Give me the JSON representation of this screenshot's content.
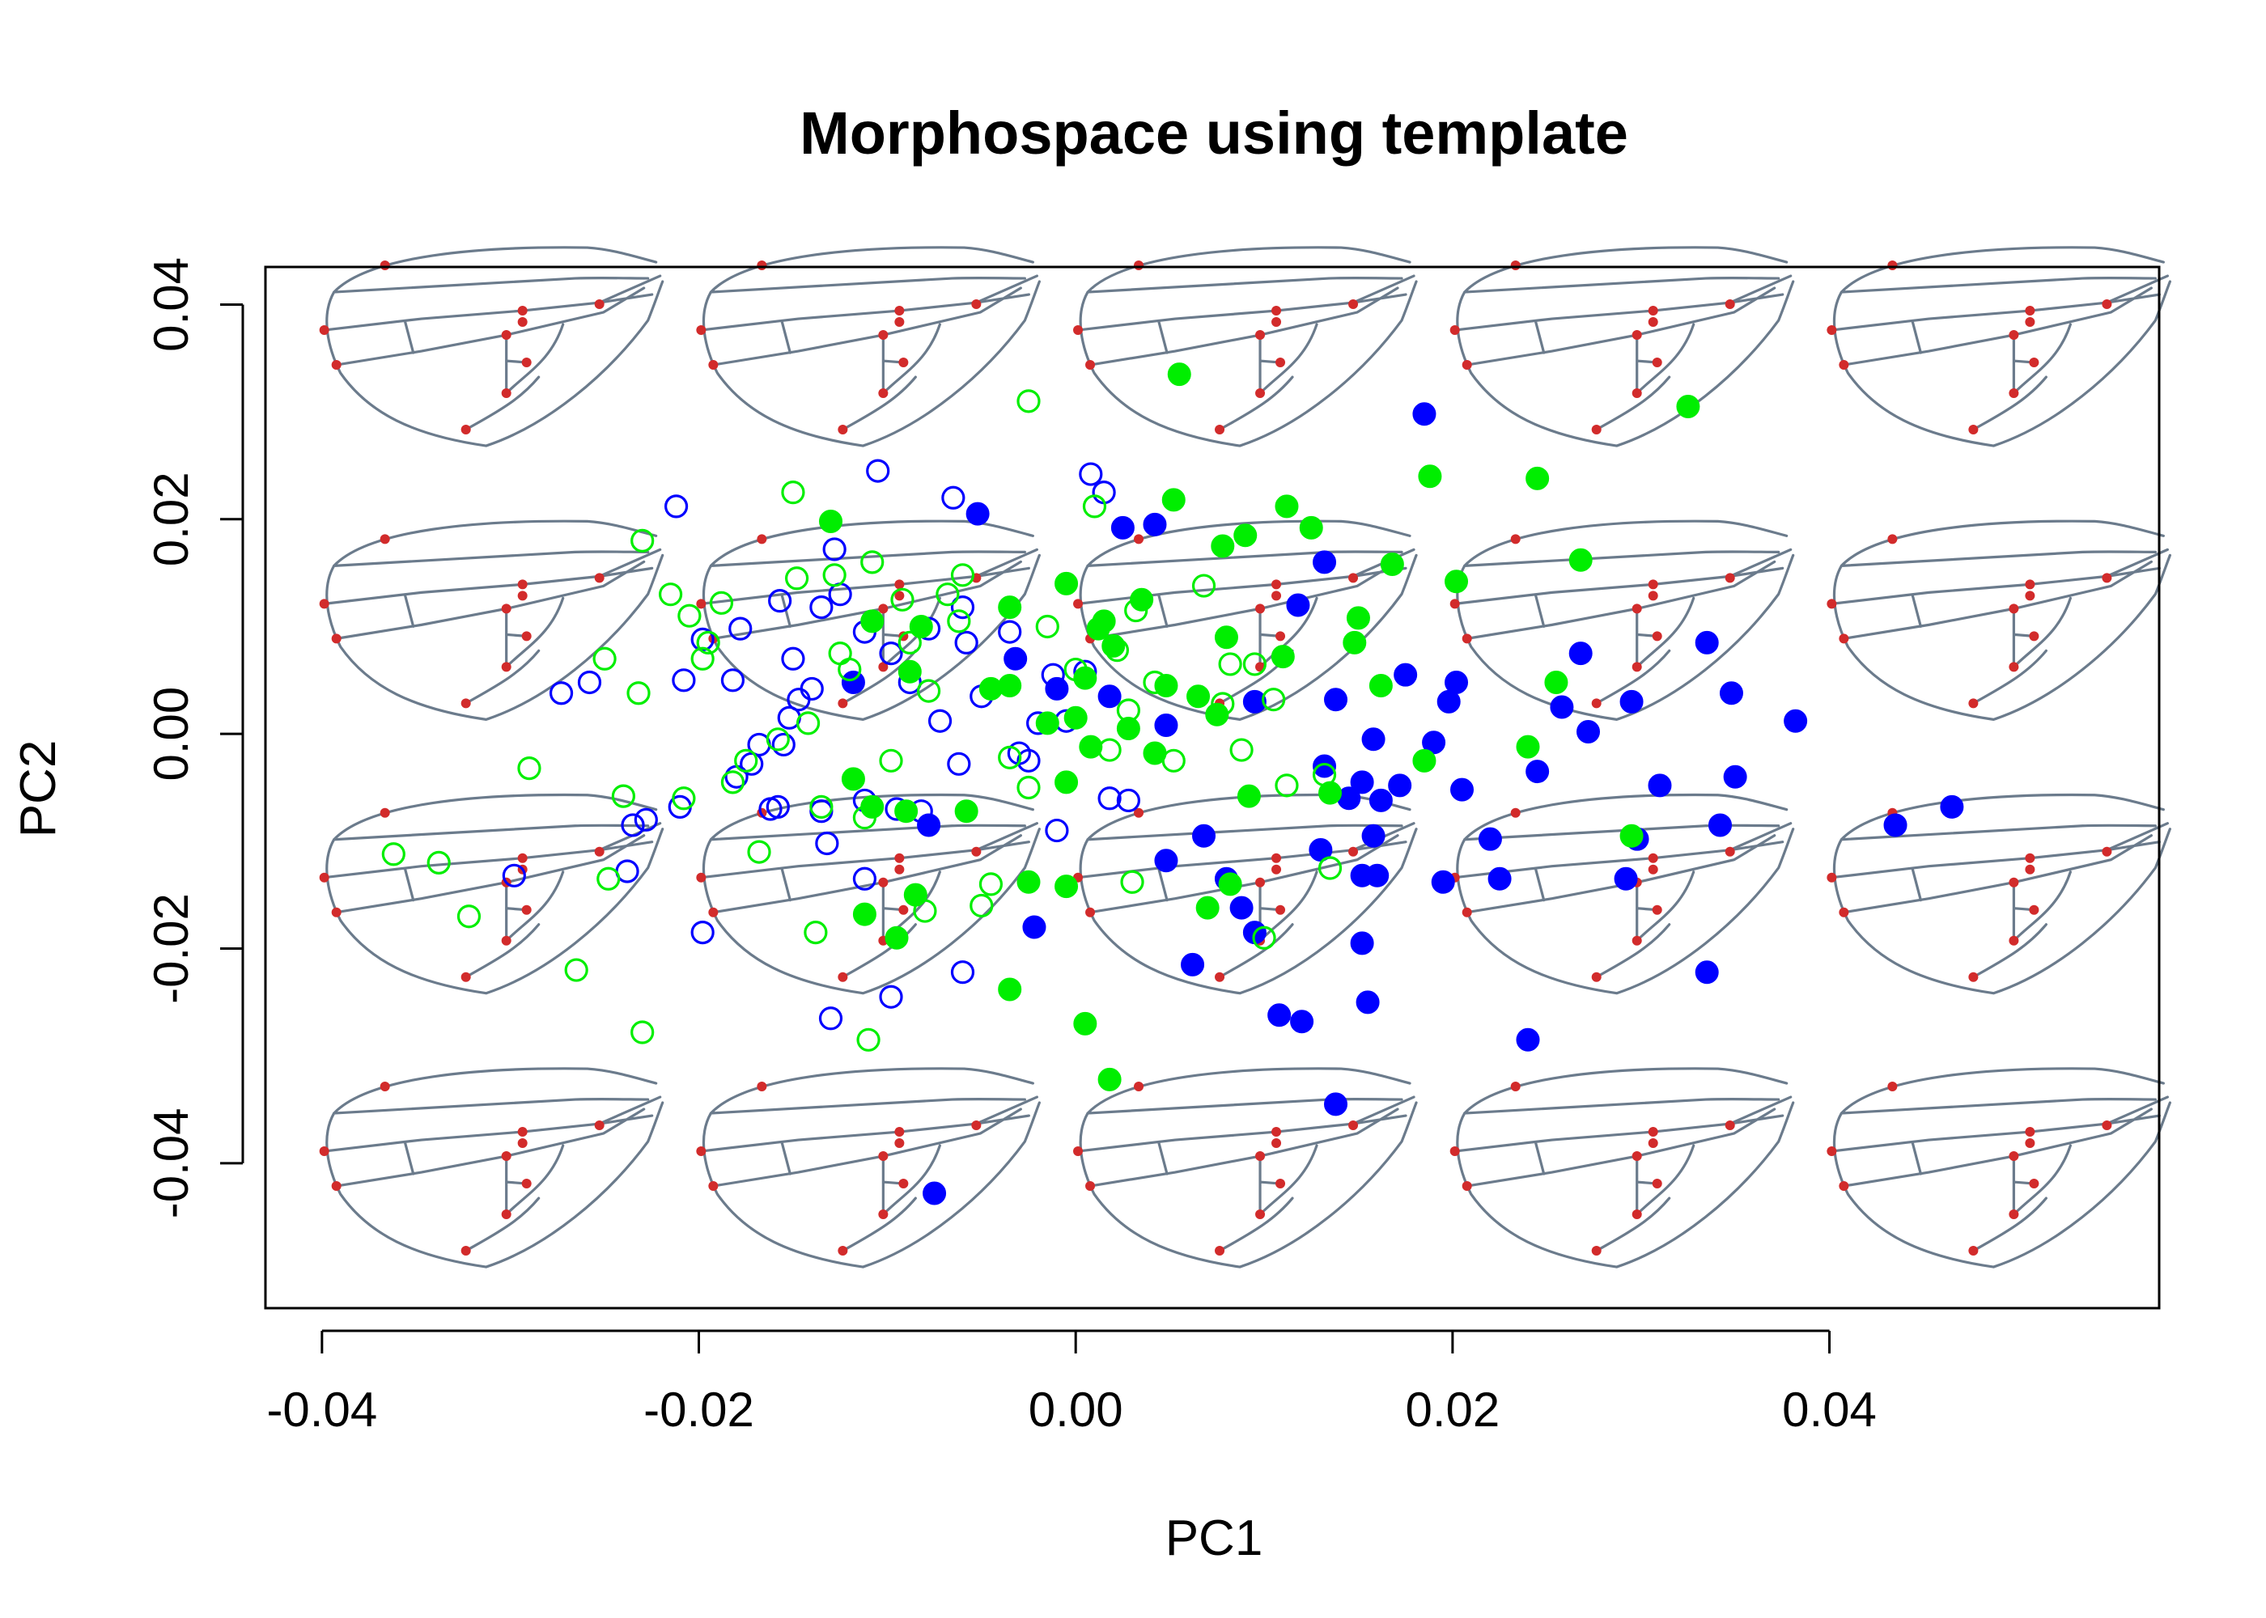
{
  "chart_data": {
    "type": "scatter",
    "title": "Morphospace using template",
    "xlabel": "PC1",
    "ylabel": "PC2",
    "xlim": [
      -0.043,
      0.0575
    ],
    "ylim": [
      -0.0535,
      0.0435
    ],
    "x_ticks": [
      "-0.04",
      "-0.02",
      "0.00",
      "0.02",
      "0.04"
    ],
    "x_tick_values": [
      -0.04,
      -0.02,
      0.0,
      0.02,
      0.04
    ],
    "y_ticks": [
      "-0.04",
      "-0.02",
      "0.00",
      "0.02",
      "0.04"
    ],
    "y_tick_values": [
      -0.04,
      -0.02,
      0.0,
      0.02,
      0.04
    ],
    "grid": false,
    "legend": "none",
    "background_glyph": "wing-template",
    "background_glyph_columns": [
      -0.03,
      -0.01,
      0.01,
      0.03,
      0.05
    ],
    "background_glyph_rows": [
      0.034,
      0.0085,
      -0.017,
      -0.0425
    ],
    "colors": {
      "blue": "#0000ff",
      "green": "#00ee00",
      "wing_outline": "#6b7b8c",
      "landmark": "#d22b2b"
    },
    "series": [
      {
        "color": "#0000ff",
        "marker": "open-circle",
        "points": [
          [
            -0.0273,
            0.0038
          ],
          [
            -0.0258,
            0.0048
          ],
          [
            -0.0212,
            0.0212
          ],
          [
            -0.0198,
            0.0088
          ],
          [
            -0.0208,
            0.005
          ],
          [
            -0.0178,
            0.0098
          ],
          [
            -0.0182,
            0.005
          ],
          [
            -0.0168,
            -0.001
          ],
          [
            -0.0172,
            -0.0028
          ],
          [
            -0.018,
            -0.004
          ],
          [
            -0.0162,
            -0.007
          ],
          [
            -0.015,
            0.007
          ],
          [
            -0.0147,
            0.0032
          ],
          [
            -0.014,
            0.0042
          ],
          [
            -0.0157,
            0.0124
          ],
          [
            -0.0135,
            0.0118
          ],
          [
            -0.0128,
            0.0172
          ],
          [
            -0.0125,
            0.013
          ],
          [
            -0.0112,
            0.0095
          ],
          [
            -0.0105,
            0.0245
          ],
          [
            -0.0098,
            0.0075
          ],
          [
            -0.0088,
            0.0048
          ],
          [
            -0.0078,
            0.0098
          ],
          [
            -0.0072,
            0.0012
          ],
          [
            -0.0065,
            0.022
          ],
          [
            -0.006,
            0.0118
          ],
          [
            -0.0058,
            0.0085
          ],
          [
            -0.0062,
            -0.0028
          ],
          [
            -0.005,
            0.0035
          ],
          [
            -0.0035,
            0.0095
          ],
          [
            -0.003,
            -0.0018
          ],
          [
            -0.0012,
            0.0055
          ],
          [
            -0.0025,
            -0.0025
          ],
          [
            -0.002,
            0.001
          ],
          [
            -0.001,
            -0.009
          ],
          [
            -0.0005,
            0.0012
          ],
          [
            0.0005,
            0.0058
          ],
          [
            0.0008,
            0.0242
          ],
          [
            0.0015,
            0.0225
          ],
          [
            0.0018,
            -0.006
          ],
          [
            0.0028,
            -0.0062
          ],
          [
            -0.0082,
            -0.0072
          ],
          [
            -0.0095,
            -0.007
          ],
          [
            -0.0112,
            -0.0062
          ],
          [
            -0.0135,
            -0.0072
          ],
          [
            -0.0158,
            -0.0068
          ],
          [
            -0.0132,
            -0.0102
          ],
          [
            -0.0228,
            -0.008
          ],
          [
            -0.0235,
            -0.0085
          ],
          [
            -0.0238,
            -0.0128
          ],
          [
            -0.0298,
            -0.0132
          ],
          [
            -0.0198,
            -0.0185
          ],
          [
            -0.0112,
            -0.0135
          ],
          [
            -0.0098,
            -0.0245
          ],
          [
            -0.013,
            -0.0265
          ],
          [
            -0.006,
            -0.0222
          ],
          [
            -0.0152,
            0.0015
          ],
          [
            -0.0155,
            -0.001
          ],
          [
            -0.021,
            -0.0068
          ]
        ]
      },
      {
        "color": "#0000ff",
        "marker": "filled-circle",
        "points": [
          [
            -0.0052,
            0.0205
          ],
          [
            -0.0118,
            0.0048
          ],
          [
            -0.0078,
            -0.0085
          ],
          [
            -0.0032,
            0.007
          ],
          [
            -0.001,
            0.0042
          ],
          [
            0.0018,
            0.0035
          ],
          [
            0.0025,
            0.0192
          ],
          [
            0.0042,
            0.0195
          ],
          [
            0.0048,
            0.0008
          ],
          [
            0.0068,
            -0.0095
          ],
          [
            0.008,
            -0.0135
          ],
          [
            0.0088,
            -0.0162
          ],
          [
            0.0095,
            0.003
          ],
          [
            0.0118,
            0.012
          ],
          [
            0.0132,
            0.016
          ],
          [
            0.0138,
            0.0032
          ],
          [
            0.0132,
            -0.003
          ],
          [
            0.0145,
            -0.006
          ],
          [
            0.0152,
            -0.0045
          ],
          [
            0.0158,
            -0.0005
          ],
          [
            0.0162,
            -0.0062
          ],
          [
            0.0172,
            -0.0048
          ],
          [
            0.0175,
            0.0055
          ],
          [
            0.0185,
            0.0298
          ],
          [
            0.019,
            -0.0008
          ],
          [
            0.0198,
            0.003
          ],
          [
            0.0202,
            0.0048
          ],
          [
            0.0205,
            -0.0052
          ],
          [
            0.022,
            -0.0098
          ],
          [
            0.0225,
            -0.0135
          ],
          [
            0.0245,
            -0.0035
          ],
          [
            0.0258,
            0.0025
          ],
          [
            0.0268,
            0.0075
          ],
          [
            0.0272,
            0.0002
          ],
          [
            0.0292,
            -0.0135
          ],
          [
            0.0295,
            0.003
          ],
          [
            0.0298,
            -0.0098
          ],
          [
            0.031,
            -0.0048
          ],
          [
            0.0335,
            0.0085
          ],
          [
            0.0335,
            -0.0222
          ],
          [
            0.0342,
            -0.0085
          ],
          [
            0.0348,
            0.0038
          ],
          [
            0.035,
            -0.004
          ],
          [
            0.0382,
            0.0012
          ],
          [
            0.0435,
            -0.0085
          ],
          [
            0.0465,
            -0.0068
          ],
          [
            0.0048,
            -0.0118
          ],
          [
            0.0062,
            -0.0215
          ],
          [
            0.0095,
            -0.0185
          ],
          [
            0.0108,
            -0.0262
          ],
          [
            0.012,
            -0.0268
          ],
          [
            0.0138,
            -0.0345
          ],
          [
            0.0152,
            -0.0195
          ],
          [
            0.0155,
            -0.025
          ],
          [
            0.0158,
            -0.0095
          ],
          [
            0.016,
            -0.0132
          ],
          [
            0.0152,
            -0.0132
          ],
          [
            0.013,
            -0.0108
          ],
          [
            0.0195,
            -0.0138
          ],
          [
            0.024,
            -0.0285
          ],
          [
            -0.0022,
            -0.018
          ],
          [
            -0.0075,
            -0.0428
          ]
        ]
      },
      {
        "color": "#00ee00",
        "marker": "open-circle",
        "points": [
          [
            -0.029,
            -0.0032
          ],
          [
            -0.0265,
            -0.022
          ],
          [
            -0.0248,
            -0.0135
          ],
          [
            -0.024,
            -0.0058
          ],
          [
            -0.0232,
            0.0038
          ],
          [
            -0.023,
            0.018
          ],
          [
            -0.0215,
            0.013
          ],
          [
            -0.0205,
            0.011
          ],
          [
            -0.0198,
            0.007
          ],
          [
            -0.0195,
            0.0085
          ],
          [
            -0.0188,
            0.0122
          ],
          [
            -0.0182,
            -0.0045
          ],
          [
            -0.0175,
            -0.0025
          ],
          [
            -0.0168,
            -0.011
          ],
          [
            -0.0158,
            -0.0005
          ],
          [
            -0.015,
            0.0225
          ],
          [
            -0.0148,
            0.0145
          ],
          [
            -0.0142,
            0.001
          ],
          [
            -0.0138,
            -0.0185
          ],
          [
            -0.0135,
            -0.0068
          ],
          [
            -0.0128,
            0.0148
          ],
          [
            -0.0125,
            0.0075
          ],
          [
            -0.012,
            0.006
          ],
          [
            -0.0112,
            -0.0078
          ],
          [
            -0.0108,
            0.016
          ],
          [
            -0.0098,
            -0.0025
          ],
          [
            -0.0092,
            0.0125
          ],
          [
            -0.0088,
            0.0085
          ],
          [
            -0.008,
            -0.0165
          ],
          [
            -0.0078,
            0.004
          ],
          [
            -0.0068,
            0.013
          ],
          [
            -0.0062,
            0.0105
          ],
          [
            -0.006,
            0.0148
          ],
          [
            -0.005,
            -0.016
          ],
          [
            -0.0045,
            -0.014
          ],
          [
            -0.0035,
            -0.0022
          ],
          [
            -0.0025,
            -0.005
          ],
          [
            -0.0015,
            0.01
          ],
          [
            0.0,
            0.006
          ],
          [
            0.001,
            0.0212
          ],
          [
            0.0018,
            -0.0015
          ],
          [
            0.0022,
            0.0078
          ],
          [
            0.0028,
            0.0022
          ],
          [
            0.0032,
            0.0115
          ],
          [
            0.0042,
            0.0048
          ],
          [
            0.0052,
            -0.0025
          ],
          [
            0.0068,
            0.0138
          ],
          [
            0.0078,
            0.0028
          ],
          [
            0.0082,
            0.0065
          ],
          [
            0.0088,
            -0.0015
          ],
          [
            0.0095,
            0.0065
          ],
          [
            0.0105,
            0.0032
          ],
          [
            0.0112,
            -0.0048
          ],
          [
            0.0132,
            -0.0038
          ],
          [
            0.0135,
            -0.0125
          ],
          [
            0.003,
            -0.0138
          ],
          [
            0.01,
            -0.019
          ],
          [
            -0.023,
            -0.0278
          ],
          [
            -0.011,
            -0.0285
          ],
          [
            -0.0338,
            -0.012
          ],
          [
            -0.0322,
            -0.017
          ],
          [
            -0.0362,
            -0.0112
          ],
          [
            -0.025,
            0.007
          ],
          [
            -0.0025,
            0.031
          ],
          [
            -0.0208,
            -0.006
          ]
        ]
      },
      {
        "color": "#00ee00",
        "marker": "filled-circle",
        "points": [
          [
            -0.013,
            0.0198
          ],
          [
            -0.0118,
            -0.0042
          ],
          [
            -0.0112,
            -0.0168
          ],
          [
            -0.0108,
            0.0105
          ],
          [
            -0.0108,
            -0.0068
          ],
          [
            -0.0095,
            -0.019
          ],
          [
            -0.009,
            -0.0072
          ],
          [
            -0.0088,
            0.0058
          ],
          [
            -0.0085,
            -0.015
          ],
          [
            -0.0082,
            0.01
          ],
          [
            -0.0058,
            -0.0072
          ],
          [
            -0.0045,
            0.0042
          ],
          [
            -0.0035,
            0.0118
          ],
          [
            -0.0025,
            -0.0138
          ],
          [
            -0.0015,
            0.001
          ],
          [
            -0.0005,
            0.014
          ],
          [
            -0.0005,
            -0.0045
          ],
          [
            0.0005,
            0.0052
          ],
          [
            0.0008,
            -0.0012
          ],
          [
            0.0012,
            0.0098
          ],
          [
            0.0015,
            0.0105
          ],
          [
            0.002,
            0.0082
          ],
          [
            0.0028,
            0.0005
          ],
          [
            0.0035,
            0.0125
          ],
          [
            0.0042,
            -0.0018
          ],
          [
            0.0048,
            0.0045
          ],
          [
            0.0052,
            0.0218
          ],
          [
            0.0055,
            0.0335
          ],
          [
            0.0065,
            0.0035
          ],
          [
            0.007,
            -0.0162
          ],
          [
            0.0075,
            0.0018
          ],
          [
            0.0078,
            0.0175
          ],
          [
            0.008,
            0.009
          ],
          [
            0.0082,
            -0.014
          ],
          [
            0.009,
            0.0185
          ],
          [
            0.0092,
            -0.0058
          ],
          [
            0.011,
            0.0072
          ],
          [
            0.0112,
            0.0212
          ],
          [
            0.0125,
            0.0192
          ],
          [
            0.0135,
            -0.0055
          ],
          [
            0.0148,
            0.0085
          ],
          [
            0.015,
            0.0108
          ],
          [
            0.0162,
            0.0045
          ],
          [
            0.0168,
            0.0158
          ],
          [
            0.0185,
            -0.0025
          ],
          [
            0.0188,
            0.024
          ],
          [
            0.0202,
            0.0142
          ],
          [
            0.024,
            -0.0012
          ],
          [
            0.0245,
            0.0238
          ],
          [
            0.0255,
            0.0048
          ],
          [
            0.0268,
            0.0162
          ],
          [
            0.0295,
            -0.0095
          ],
          [
            0.0325,
            0.0305
          ],
          [
            0.0005,
            -0.027
          ],
          [
            0.0018,
            -0.0322
          ],
          [
            -0.0035,
            -0.0238
          ],
          [
            -0.0005,
            -0.0142
          ],
          [
            -0.0035,
            0.0045
          ],
          [
            0.0,
            0.0015
          ]
        ]
      }
    ]
  }
}
